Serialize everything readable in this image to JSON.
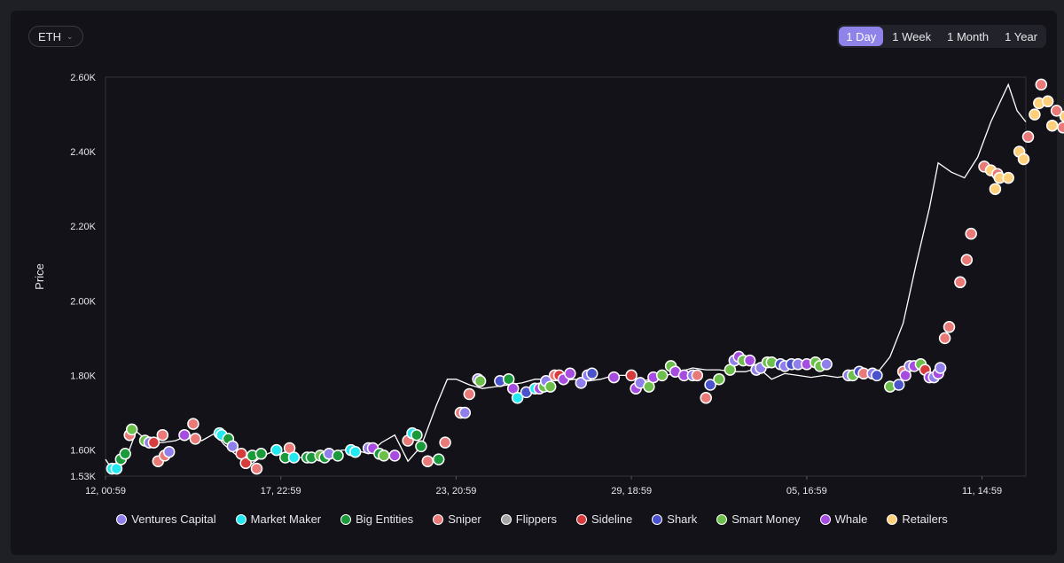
{
  "asset_select": {
    "label": "ETH"
  },
  "time_ranges": [
    {
      "label": "1 Day",
      "active": true
    },
    {
      "label": "1 Week",
      "active": false
    },
    {
      "label": "1 Month",
      "active": false
    },
    {
      "label": "1 Year",
      "active": false
    }
  ],
  "chart_data": {
    "type": "scatter",
    "ylabel": "Price",
    "ylim": [
      1530,
      2600
    ],
    "ytick_values": [
      1530,
      1600,
      1800,
      2000,
      2200,
      2400,
      2600
    ],
    "ytick_labels": [
      "1.53K",
      "1.60K",
      "1.80K",
      "2.00K",
      "2.20K",
      "2.40K",
      "2.60K"
    ],
    "xlim": [
      0,
      21
    ],
    "xtick_values": [
      0,
      4,
      8,
      12,
      16,
      20
    ],
    "xtick_labels": [
      "12, 00:59",
      "17, 22:59",
      "23, 20:59",
      "29, 18:59",
      "05, 16:59",
      "11, 14:59"
    ],
    "categories": [
      {
        "name": "Ventures Capital",
        "color": "#8f7fea"
      },
      {
        "name": "Market Maker",
        "color": "#22e8f2"
      },
      {
        "name": "Big Entities",
        "color": "#1a9a3a"
      },
      {
        "name": "Sniper",
        "color": "#e97a78"
      },
      {
        "name": "Flippers",
        "color": "#a5a5a5"
      },
      {
        "name": "Sideline",
        "color": "#d73c3c"
      },
      {
        "name": "Shark",
        "color": "#4a52cc"
      },
      {
        "name": "Smart Money",
        "color": "#6cbf4a"
      },
      {
        "name": "Whale",
        "color": "#a64ce0"
      },
      {
        "name": "Retailers",
        "color": "#ffcf7a"
      }
    ],
    "price_line": [
      [
        0.0,
        1575
      ],
      [
        0.2,
        1540
      ],
      [
        0.45,
        1570
      ],
      [
        0.7,
        1650
      ],
      [
        1.0,
        1620
      ],
      [
        1.3,
        1620
      ],
      [
        1.6,
        1625
      ],
      [
        1.9,
        1640
      ],
      [
        2.2,
        1625
      ],
      [
        2.5,
        1645
      ],
      [
        2.7,
        1615
      ],
      [
        3.0,
        1585
      ],
      [
        3.3,
        1560
      ],
      [
        3.6,
        1585
      ],
      [
        3.9,
        1600
      ],
      [
        4.2,
        1580
      ],
      [
        4.5,
        1580
      ],
      [
        4.8,
        1585
      ],
      [
        5.1,
        1590
      ],
      [
        5.4,
        1600
      ],
      [
        5.7,
        1600
      ],
      [
        6.0,
        1590
      ],
      [
        6.3,
        1620
      ],
      [
        6.6,
        1640
      ],
      [
        6.9,
        1570
      ],
      [
        7.2,
        1610
      ],
      [
        7.55,
        1720
      ],
      [
        7.8,
        1790
      ],
      [
        8.0,
        1790
      ],
      [
        8.3,
        1775
      ],
      [
        8.6,
        1765
      ],
      [
        8.9,
        1770
      ],
      [
        9.2,
        1775
      ],
      [
        9.5,
        1780
      ],
      [
        9.8,
        1790
      ],
      [
        10.1,
        1790
      ],
      [
        10.4,
        1785
      ],
      [
        10.7,
        1790
      ],
      [
        11.0,
        1785
      ],
      [
        11.3,
        1790
      ],
      [
        11.6,
        1800
      ],
      [
        11.9,
        1800
      ],
      [
        12.2,
        1785
      ],
      [
        12.5,
        1790
      ],
      [
        12.8,
        1800
      ],
      [
        13.1,
        1810
      ],
      [
        13.4,
        1820
      ],
      [
        13.7,
        1815
      ],
      [
        14.0,
        1815
      ],
      [
        14.3,
        1810
      ],
      [
        14.6,
        1810
      ],
      [
        14.9,
        1820
      ],
      [
        15.2,
        1790
      ],
      [
        15.5,
        1805
      ],
      [
        15.8,
        1800
      ],
      [
        16.1,
        1795
      ],
      [
        16.4,
        1800
      ],
      [
        16.7,
        1795
      ],
      [
        17.0,
        1800
      ],
      [
        17.3,
        1815
      ],
      [
        17.6,
        1805
      ],
      [
        17.9,
        1850
      ],
      [
        18.2,
        1940
      ],
      [
        18.5,
        2100
      ],
      [
        18.8,
        2250
      ],
      [
        19.0,
        2370
      ],
      [
        19.3,
        2345
      ],
      [
        19.6,
        2330
      ],
      [
        19.9,
        2385
      ],
      [
        20.2,
        2480
      ],
      [
        20.4,
        2530
      ],
      [
        20.6,
        2580
      ],
      [
        20.8,
        2510
      ],
      [
        21.0,
        2480
      ]
    ],
    "points": [
      {
        "x": 0.15,
        "y": 1550,
        "c": 1
      },
      {
        "x": 0.25,
        "y": 1550,
        "c": 1
      },
      {
        "x": 0.35,
        "y": 1575,
        "c": 2
      },
      {
        "x": 0.45,
        "y": 1590,
        "c": 2
      },
      {
        "x": 0.55,
        "y": 1640,
        "c": 3
      },
      {
        "x": 0.6,
        "y": 1655,
        "c": 7
      },
      {
        "x": 0.9,
        "y": 1625,
        "c": 7
      },
      {
        "x": 1.0,
        "y": 1620,
        "c": 0
      },
      {
        "x": 1.1,
        "y": 1620,
        "c": 5
      },
      {
        "x": 1.2,
        "y": 1570,
        "c": 3
      },
      {
        "x": 1.3,
        "y": 1640,
        "c": 3
      },
      {
        "x": 1.35,
        "y": 1585,
        "c": 3
      },
      {
        "x": 1.45,
        "y": 1595,
        "c": 0
      },
      {
        "x": 1.8,
        "y": 1640,
        "c": 8
      },
      {
        "x": 2.0,
        "y": 1670,
        "c": 3
      },
      {
        "x": 2.05,
        "y": 1630,
        "c": 3
      },
      {
        "x": 2.6,
        "y": 1645,
        "c": 1
      },
      {
        "x": 2.65,
        "y": 1640,
        "c": 1
      },
      {
        "x": 2.8,
        "y": 1630,
        "c": 2
      },
      {
        "x": 2.9,
        "y": 1610,
        "c": 0
      },
      {
        "x": 3.1,
        "y": 1590,
        "c": 5
      },
      {
        "x": 3.2,
        "y": 1565,
        "c": 5
      },
      {
        "x": 3.35,
        "y": 1585,
        "c": 2
      },
      {
        "x": 3.45,
        "y": 1550,
        "c": 3
      },
      {
        "x": 3.55,
        "y": 1590,
        "c": 2
      },
      {
        "x": 3.9,
        "y": 1600,
        "c": 1
      },
      {
        "x": 4.1,
        "y": 1580,
        "c": 2
      },
      {
        "x": 4.2,
        "y": 1605,
        "c": 3
      },
      {
        "x": 4.3,
        "y": 1580,
        "c": 1
      },
      {
        "x": 4.6,
        "y": 1580,
        "c": 2
      },
      {
        "x": 4.7,
        "y": 1580,
        "c": 2
      },
      {
        "x": 4.9,
        "y": 1585,
        "c": 7
      },
      {
        "x": 5.0,
        "y": 1580,
        "c": 2
      },
      {
        "x": 5.1,
        "y": 1590,
        "c": 0
      },
      {
        "x": 5.3,
        "y": 1585,
        "c": 2
      },
      {
        "x": 5.6,
        "y": 1600,
        "c": 1
      },
      {
        "x": 5.7,
        "y": 1595,
        "c": 1
      },
      {
        "x": 6.0,
        "y": 1605,
        "c": 0
      },
      {
        "x": 6.1,
        "y": 1605,
        "c": 8
      },
      {
        "x": 6.25,
        "y": 1590,
        "c": 2
      },
      {
        "x": 6.35,
        "y": 1585,
        "c": 7
      },
      {
        "x": 6.6,
        "y": 1585,
        "c": 8
      },
      {
        "x": 6.9,
        "y": 1625,
        "c": 3
      },
      {
        "x": 7.0,
        "y": 1645,
        "c": 1
      },
      {
        "x": 7.1,
        "y": 1640,
        "c": 2
      },
      {
        "x": 7.2,
        "y": 1610,
        "c": 2
      },
      {
        "x": 7.35,
        "y": 1570,
        "c": 3
      },
      {
        "x": 7.6,
        "y": 1575,
        "c": 2
      },
      {
        "x": 7.75,
        "y": 1620,
        "c": 3
      },
      {
        "x": 8.1,
        "y": 1700,
        "c": 3
      },
      {
        "x": 8.2,
        "y": 1700,
        "c": 0
      },
      {
        "x": 8.3,
        "y": 1750,
        "c": 3
      },
      {
        "x": 8.5,
        "y": 1790,
        "c": 0
      },
      {
        "x": 8.55,
        "y": 1785,
        "c": 7
      },
      {
        "x": 9.0,
        "y": 1785,
        "c": 6
      },
      {
        "x": 9.2,
        "y": 1790,
        "c": 2
      },
      {
        "x": 9.3,
        "y": 1765,
        "c": 8
      },
      {
        "x": 9.4,
        "y": 1740,
        "c": 1
      },
      {
        "x": 9.6,
        "y": 1755,
        "c": 6
      },
      {
        "x": 9.8,
        "y": 1765,
        "c": 1
      },
      {
        "x": 9.9,
        "y": 1765,
        "c": 8
      },
      {
        "x": 10.0,
        "y": 1770,
        "c": 7
      },
      {
        "x": 10.05,
        "y": 1785,
        "c": 0
      },
      {
        "x": 10.15,
        "y": 1770,
        "c": 7
      },
      {
        "x": 10.25,
        "y": 1800,
        "c": 3
      },
      {
        "x": 10.35,
        "y": 1800,
        "c": 5
      },
      {
        "x": 10.45,
        "y": 1790,
        "c": 8
      },
      {
        "x": 10.6,
        "y": 1805,
        "c": 8
      },
      {
        "x": 10.85,
        "y": 1780,
        "c": 0
      },
      {
        "x": 11.0,
        "y": 1800,
        "c": 0
      },
      {
        "x": 11.1,
        "y": 1805,
        "c": 6
      },
      {
        "x": 11.6,
        "y": 1795,
        "c": 8
      },
      {
        "x": 12.0,
        "y": 1800,
        "c": 5
      },
      {
        "x": 12.1,
        "y": 1765,
        "c": 8
      },
      {
        "x": 12.2,
        "y": 1780,
        "c": 0
      },
      {
        "x": 12.4,
        "y": 1770,
        "c": 7
      },
      {
        "x": 12.5,
        "y": 1795,
        "c": 8
      },
      {
        "x": 12.7,
        "y": 1800,
        "c": 7
      },
      {
        "x": 12.9,
        "y": 1825,
        "c": 7
      },
      {
        "x": 13.0,
        "y": 1810,
        "c": 8
      },
      {
        "x": 13.2,
        "y": 1800,
        "c": 8
      },
      {
        "x": 13.4,
        "y": 1800,
        "c": 0
      },
      {
        "x": 13.5,
        "y": 1800,
        "c": 3
      },
      {
        "x": 13.7,
        "y": 1740,
        "c": 3
      },
      {
        "x": 13.8,
        "y": 1775,
        "c": 6
      },
      {
        "x": 14.0,
        "y": 1790,
        "c": 7
      },
      {
        "x": 14.25,
        "y": 1815,
        "c": 7
      },
      {
        "x": 14.35,
        "y": 1840,
        "c": 0
      },
      {
        "x": 14.45,
        "y": 1850,
        "c": 8
      },
      {
        "x": 14.55,
        "y": 1840,
        "c": 7
      },
      {
        "x": 14.7,
        "y": 1840,
        "c": 8
      },
      {
        "x": 14.85,
        "y": 1815,
        "c": 0
      },
      {
        "x": 14.95,
        "y": 1820,
        "c": 0
      },
      {
        "x": 15.1,
        "y": 1835,
        "c": 7
      },
      {
        "x": 15.2,
        "y": 1835,
        "c": 7
      },
      {
        "x": 15.4,
        "y": 1830,
        "c": 6
      },
      {
        "x": 15.5,
        "y": 1825,
        "c": 0
      },
      {
        "x": 15.65,
        "y": 1830,
        "c": 6
      },
      {
        "x": 15.8,
        "y": 1830,
        "c": 0
      },
      {
        "x": 16.0,
        "y": 1830,
        "c": 8
      },
      {
        "x": 16.2,
        "y": 1835,
        "c": 7
      },
      {
        "x": 16.3,
        "y": 1825,
        "c": 7
      },
      {
        "x": 16.45,
        "y": 1830,
        "c": 0
      },
      {
        "x": 16.95,
        "y": 1800,
        "c": 0
      },
      {
        "x": 17.05,
        "y": 1800,
        "c": 7
      },
      {
        "x": 17.2,
        "y": 1810,
        "c": 6
      },
      {
        "x": 17.3,
        "y": 1805,
        "c": 3
      },
      {
        "x": 17.5,
        "y": 1805,
        "c": 0
      },
      {
        "x": 17.6,
        "y": 1800,
        "c": 6
      },
      {
        "x": 17.9,
        "y": 1770,
        "c": 7
      },
      {
        "x": 18.1,
        "y": 1775,
        "c": 6
      },
      {
        "x": 18.2,
        "y": 1810,
        "c": 3
      },
      {
        "x": 18.25,
        "y": 1800,
        "c": 8
      },
      {
        "x": 18.35,
        "y": 1825,
        "c": 0
      },
      {
        "x": 18.45,
        "y": 1825,
        "c": 8
      },
      {
        "x": 18.6,
        "y": 1830,
        "c": 7
      },
      {
        "x": 18.7,
        "y": 1815,
        "c": 5
      },
      {
        "x": 18.8,
        "y": 1795,
        "c": 8
      },
      {
        "x": 18.9,
        "y": 1795,
        "c": 0
      },
      {
        "x": 19.0,
        "y": 1805,
        "c": 8
      },
      {
        "x": 19.05,
        "y": 1820,
        "c": 0
      },
      {
        "x": 19.15,
        "y": 1900,
        "c": 3
      },
      {
        "x": 19.25,
        "y": 1930,
        "c": 3
      },
      {
        "x": 19.5,
        "y": 2050,
        "c": 3
      },
      {
        "x": 19.65,
        "y": 2110,
        "c": 3
      },
      {
        "x": 19.75,
        "y": 2180,
        "c": 3
      },
      {
        "x": 20.05,
        "y": 2360,
        "c": 3
      },
      {
        "x": 20.2,
        "y": 2350,
        "c": 9
      },
      {
        "x": 20.3,
        "y": 2300,
        "c": 9
      },
      {
        "x": 20.35,
        "y": 2340,
        "c": 3
      },
      {
        "x": 20.4,
        "y": 2330,
        "c": 9
      },
      {
        "x": 20.6,
        "y": 2330,
        "c": 9
      },
      {
        "x": 20.85,
        "y": 2400,
        "c": 9
      },
      {
        "x": 20.95,
        "y": 2380,
        "c": 9
      },
      {
        "x": 21.05,
        "y": 2440,
        "c": 3
      },
      {
        "x": 21.2,
        "y": 2500,
        "c": 9
      },
      {
        "x": 21.3,
        "y": 2530,
        "c": 9
      },
      {
        "x": 21.35,
        "y": 2580,
        "c": 3
      },
      {
        "x": 21.5,
        "y": 2535,
        "c": 9
      },
      {
        "x": 21.6,
        "y": 2470,
        "c": 9
      },
      {
        "x": 21.7,
        "y": 2510,
        "c": 3
      },
      {
        "x": 21.85,
        "y": 2465,
        "c": 3
      },
      {
        "x": 21.9,
        "y": 2495,
        "c": 9
      }
    ]
  }
}
